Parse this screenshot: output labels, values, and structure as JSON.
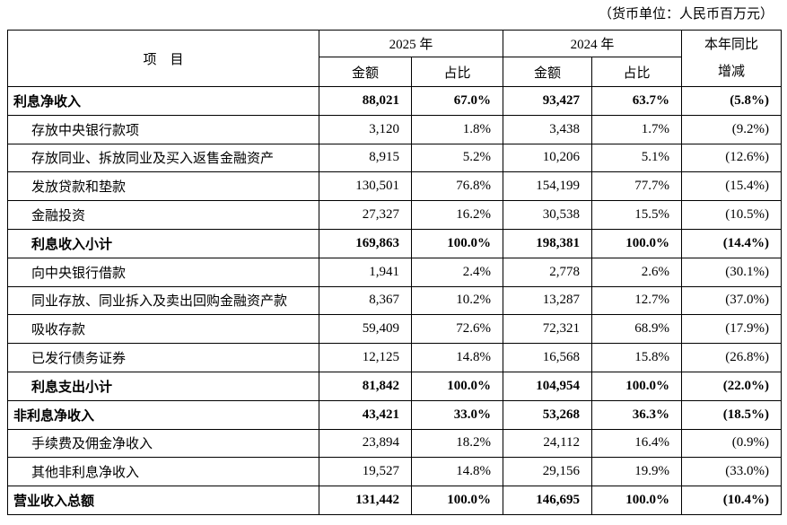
{
  "note": "（货币单位：人民币百万元）",
  "table": {
    "header": {
      "item": "项　目",
      "y2025": "2025 年",
      "y2024": "2024 年",
      "amount": "金额",
      "ratio": "占比",
      "yoy_line1": "本年同比",
      "yoy_line2": "增减"
    },
    "rows": [
      {
        "label": "利息净收入",
        "bold": true,
        "indent": false,
        "a25": "88,021",
        "p25": "67.0%",
        "a24": "93,427",
        "p24": "63.7%",
        "yoy": "(5.8%)"
      },
      {
        "label": "存放中央银行款项",
        "bold": false,
        "indent": true,
        "a25": "3,120",
        "p25": "1.8%",
        "a24": "3,438",
        "p24": "1.7%",
        "yoy": "(9.2%)"
      },
      {
        "label": "存放同业、拆放同业及买入返售金融资产",
        "bold": false,
        "indent": true,
        "a25": "8,915",
        "p25": "5.2%",
        "a24": "10,206",
        "p24": "5.1%",
        "yoy": "(12.6%)"
      },
      {
        "label": "发放贷款和垫款",
        "bold": false,
        "indent": true,
        "a25": "130,501",
        "p25": "76.8%",
        "a24": "154,199",
        "p24": "77.7%",
        "yoy": "(15.4%)"
      },
      {
        "label": "金融投资",
        "bold": false,
        "indent": true,
        "a25": "27,327",
        "p25": "16.2%",
        "a24": "30,538",
        "p24": "15.5%",
        "yoy": "(10.5%)"
      },
      {
        "label": "利息收入小计",
        "bold": true,
        "indent": true,
        "a25": "169,863",
        "p25": "100.0%",
        "a24": "198,381",
        "p24": "100.0%",
        "yoy": "(14.4%)"
      },
      {
        "label": "向中央银行借款",
        "bold": false,
        "indent": true,
        "a25": "1,941",
        "p25": "2.4%",
        "a24": "2,778",
        "p24": "2.6%",
        "yoy": "(30.1%)"
      },
      {
        "label": "同业存放、同业拆入及卖出回购金融资产款",
        "bold": false,
        "indent": true,
        "a25": "8,367",
        "p25": "10.2%",
        "a24": "13,287",
        "p24": "12.7%",
        "yoy": "(37.0%)"
      },
      {
        "label": "吸收存款",
        "bold": false,
        "indent": true,
        "a25": "59,409",
        "p25": "72.6%",
        "a24": "72,321",
        "p24": "68.9%",
        "yoy": "(17.9%)"
      },
      {
        "label": "已发行债务证券",
        "bold": false,
        "indent": true,
        "a25": "12,125",
        "p25": "14.8%",
        "a24": "16,568",
        "p24": "15.8%",
        "yoy": "(26.8%)"
      },
      {
        "label": "利息支出小计",
        "bold": true,
        "indent": true,
        "a25": "81,842",
        "p25": "100.0%",
        "a24": "104,954",
        "p24": "100.0%",
        "yoy": "(22.0%)"
      },
      {
        "label": "非利息净收入",
        "bold": true,
        "indent": false,
        "a25": "43,421",
        "p25": "33.0%",
        "a24": "53,268",
        "p24": "36.3%",
        "yoy": "(18.5%)"
      },
      {
        "label": "手续费及佣金净收入",
        "bold": false,
        "indent": true,
        "a25": "23,894",
        "p25": "18.2%",
        "a24": "24,112",
        "p24": "16.4%",
        "yoy": "(0.9%)"
      },
      {
        "label": "其他非利息净收入",
        "bold": false,
        "indent": true,
        "a25": "19,527",
        "p25": "14.8%",
        "a24": "29,156",
        "p24": "19.9%",
        "yoy": "(33.0%)"
      },
      {
        "label": "营业收入总额",
        "bold": true,
        "indent": false,
        "a25": "131,442",
        "p25": "100.0%",
        "a24": "146,695",
        "p24": "100.0%",
        "yoy": "(10.4%)"
      }
    ]
  }
}
